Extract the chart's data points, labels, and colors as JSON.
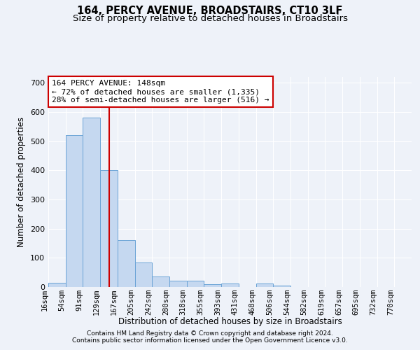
{
  "title1": "164, PERCY AVENUE, BROADSTAIRS, CT10 3LF",
  "title2": "Size of property relative to detached houses in Broadstairs",
  "xlabel": "Distribution of detached houses by size in Broadstairs",
  "ylabel": "Number of detached properties",
  "bar_labels": [
    "16sqm",
    "54sqm",
    "91sqm",
    "129sqm",
    "167sqm",
    "205sqm",
    "242sqm",
    "280sqm",
    "318sqm",
    "355sqm",
    "393sqm",
    "431sqm",
    "468sqm",
    "506sqm",
    "544sqm",
    "582sqm",
    "619sqm",
    "657sqm",
    "695sqm",
    "732sqm",
    "770sqm"
  ],
  "bar_values": [
    15,
    520,
    580,
    400,
    160,
    85,
    35,
    22,
    22,
    10,
    12,
    0,
    12,
    5,
    0,
    0,
    0,
    0,
    0,
    0,
    0
  ],
  "bar_color": "#c5d8f0",
  "bar_edge_color": "#6ba3d6",
  "property_label": "164 PERCY AVENUE: 148sqm",
  "annotation_line1": "← 72% of detached houses are smaller (1,335)",
  "annotation_line2": "28% of semi-detached houses are larger (516) →",
  "vline_color": "#cc0000",
  "annotation_box_color": "#ffffff",
  "annotation_box_edge": "#cc0000",
  "ylim": [
    0,
    720
  ],
  "yticks": [
    0,
    100,
    200,
    300,
    400,
    500,
    600,
    700
  ],
  "footnote1": "Contains HM Land Registry data © Crown copyright and database right 2024.",
  "footnote2": "Contains public sector information licensed under the Open Government Licence v3.0.",
  "background_color": "#eef2f9",
  "grid_color": "#ffffff",
  "vline_xindex": 3.5
}
